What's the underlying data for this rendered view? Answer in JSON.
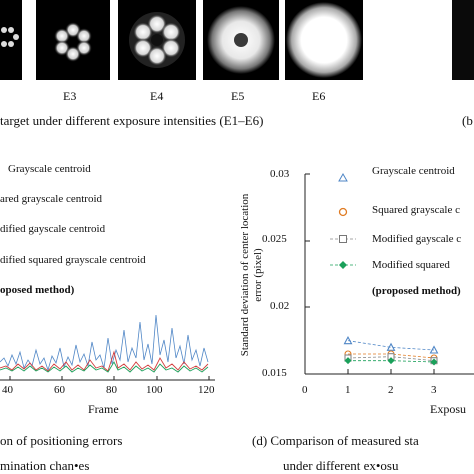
{
  "top_panel": {
    "exposure_labels": [
      "E3",
      "E4",
      "E5",
      "E6"
    ],
    "caption": "target under different exposure intensities (E1–E6)",
    "right_caption_fragment": "(b"
  },
  "left_chart": {
    "legend": [
      "Grayscale centroid",
      "ared grayscale centroid",
      "dified gayscale centroid",
      "dified    squared    grayscale    centroid",
      "oposed method)"
    ],
    "x_ticks": [
      "40",
      "60",
      "80",
      "100",
      "120"
    ],
    "x_label": "Frame",
    "caption_line1": "on of positioning errors",
    "caption_line2": "mination chan•es"
  },
  "right_chart": {
    "y_label_line1": "Standard deviation of center location",
    "y_label_line2": "error (pixel)",
    "y_ticks": [
      "0.03",
      "0.025",
      "0.02",
      "0.015"
    ],
    "x_ticks": [
      "0",
      "1",
      "2",
      "3"
    ],
    "x_label_fragment": "Exposu",
    "legend": [
      "Grayscale centroid",
      "Squared grayscale c",
      "Modified gayscale c",
      "Modified    squared",
      "(proposed method)"
    ],
    "caption_line1": "(d) Comparison of measured sta",
    "caption_line2": "under different ex•osu"
  },
  "chart_data": {
    "type": "line",
    "title": "",
    "xlabel": "Exposure",
    "ylabel": "Standard deviation of center location error (pixel)",
    "ylim": [
      0.015,
      0.03
    ],
    "x": [
      1,
      2,
      3
    ],
    "series": [
      {
        "name": "Grayscale centroid",
        "values": [
          0.0175,
          0.017,
          0.0168
        ],
        "color": "#4f86c6"
      },
      {
        "name": "Squared grayscale centroid",
        "values": [
          0.0165,
          0.0165,
          0.0162
        ],
        "color": "#e07b22"
      },
      {
        "name": "Modified gayscale centroid",
        "values": [
          0.0162,
          0.0163,
          0.016
        ],
        "color": "#888888"
      },
      {
        "name": "Modified squared grayscale centroid (proposed method)",
        "values": [
          0.016,
          0.016,
          0.0159
        ],
        "color": "#1aa05a"
      }
    ]
  },
  "colors": {
    "blue": "#4f86c6",
    "red": "#d23c3c",
    "green": "#1aa05a",
    "orange": "#e07b22",
    "gray": "#888888"
  }
}
